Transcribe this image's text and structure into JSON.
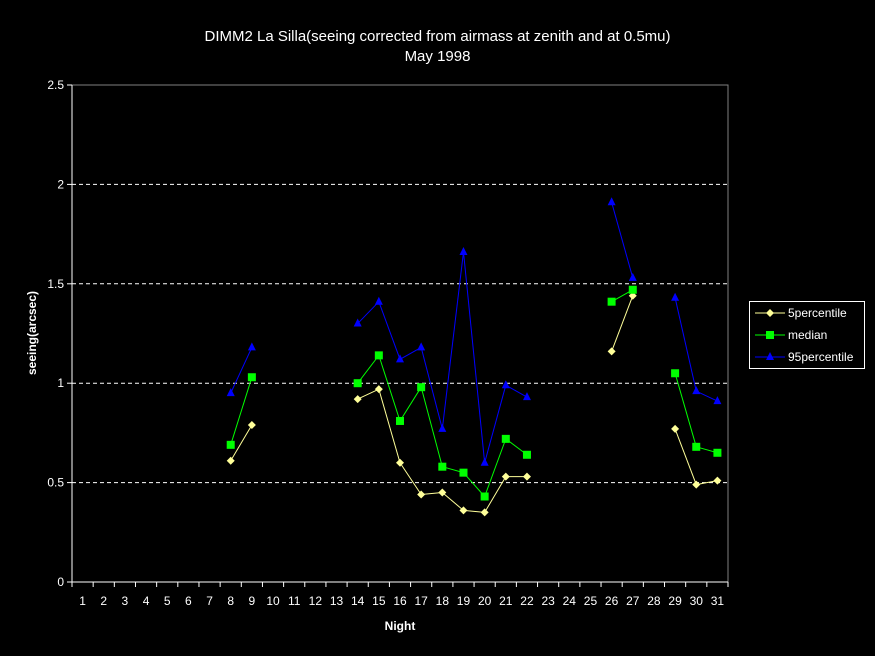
{
  "chart_data": {
    "type": "line",
    "title": "DIMM2 La Silla(seeing corrected from airmass at zenith and at 0.5mu)",
    "subtitle": "May 1998",
    "xlabel": "Night",
    "ylabel": "seeing(arcsec)",
    "ylim": [
      0,
      2.5
    ],
    "yticks": [
      "0",
      "0.5",
      "1",
      "1.5",
      "2",
      "2.5"
    ],
    "categories": [
      "1",
      "2",
      "3",
      "4",
      "5",
      "6",
      "7",
      "8",
      "9",
      "10",
      "11",
      "12",
      "13",
      "14",
      "15",
      "16",
      "17",
      "18",
      "19",
      "20",
      "21",
      "22",
      "23",
      "24",
      "25",
      "26",
      "27",
      "28",
      "29",
      "30",
      "31"
    ],
    "grid": "horizontal dashed",
    "legend_position": "right",
    "series": [
      {
        "name": "5percentile",
        "color": "#FFFF99",
        "marker": "diamond",
        "values": [
          null,
          null,
          null,
          null,
          null,
          null,
          null,
          0.61,
          0.79,
          null,
          null,
          null,
          null,
          0.92,
          0.97,
          0.6,
          0.44,
          0.45,
          0.36,
          0.35,
          0.53,
          0.53,
          null,
          null,
          null,
          1.16,
          1.44,
          null,
          0.77,
          0.49,
          0.51
        ]
      },
      {
        "name": "median",
        "color": "#00FF00",
        "marker": "square",
        "values": [
          null,
          null,
          null,
          null,
          null,
          null,
          null,
          0.69,
          1.03,
          null,
          null,
          null,
          null,
          1.0,
          1.14,
          0.81,
          0.98,
          0.58,
          0.55,
          0.43,
          0.72,
          0.64,
          null,
          null,
          null,
          1.41,
          1.47,
          null,
          1.05,
          0.68,
          0.65
        ]
      },
      {
        "name": "95percentile",
        "color": "#0000FF",
        "marker": "triangle",
        "values": [
          null,
          null,
          null,
          null,
          null,
          null,
          null,
          0.95,
          1.18,
          null,
          null,
          null,
          null,
          1.3,
          1.41,
          1.12,
          1.18,
          0.77,
          1.66,
          0.6,
          0.99,
          0.93,
          null,
          null,
          null,
          1.91,
          1.53,
          null,
          1.43,
          0.96,
          0.91
        ]
      }
    ]
  }
}
